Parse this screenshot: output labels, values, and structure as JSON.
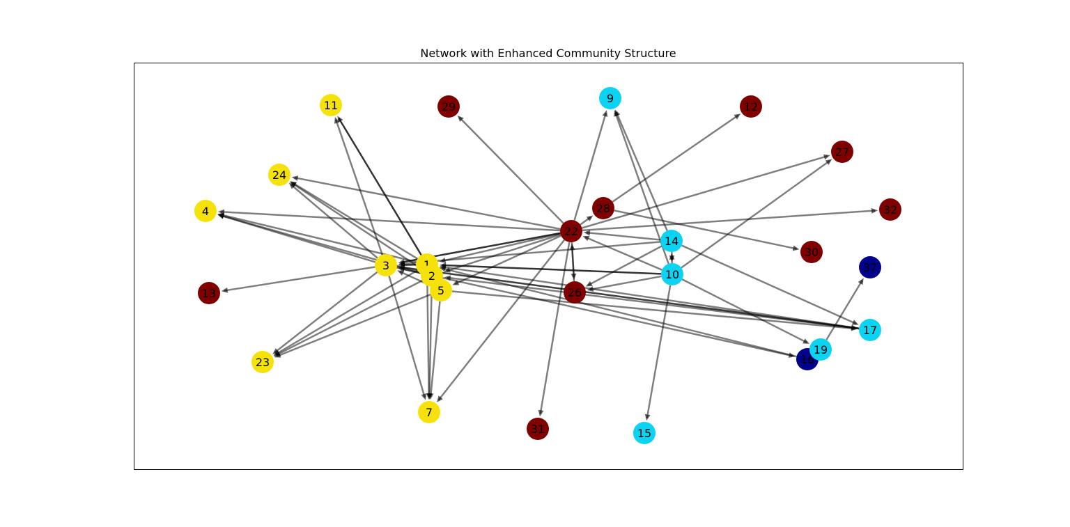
{
  "title": "Network with Enhanced Community Structure",
  "colors": {
    "community_yellow": "#f5e20a",
    "community_cyan": "#0dd3f3",
    "community_darkred": "#800000",
    "community_navy": "#00008a",
    "edge": "#000000",
    "frame": "#000000"
  },
  "nodes": [
    {
      "id": "1",
      "community": "community_yellow"
    },
    {
      "id": "2",
      "community": "community_yellow"
    },
    {
      "id": "3",
      "community": "community_yellow"
    },
    {
      "id": "4",
      "community": "community_yellow"
    },
    {
      "id": "5",
      "community": "community_yellow"
    },
    {
      "id": "7",
      "community": "community_yellow"
    },
    {
      "id": "9",
      "community": "community_cyan"
    },
    {
      "id": "10",
      "community": "community_cyan"
    },
    {
      "id": "11",
      "community": "community_yellow"
    },
    {
      "id": "12",
      "community": "community_darkred"
    },
    {
      "id": "13",
      "community": "community_darkred"
    },
    {
      "id": "14",
      "community": "community_cyan"
    },
    {
      "id": "15",
      "community": "community_cyan"
    },
    {
      "id": "16",
      "community": "community_navy"
    },
    {
      "id": "17",
      "community": "community_cyan"
    },
    {
      "id": "19",
      "community": "community_cyan"
    },
    {
      "id": "22",
      "community": "community_darkred"
    },
    {
      "id": "23",
      "community": "community_yellow"
    },
    {
      "id": "24",
      "community": "community_yellow"
    },
    {
      "id": "26",
      "community": "community_darkred"
    },
    {
      "id": "27",
      "community": "community_darkred"
    },
    {
      "id": "28",
      "community": "community_darkred"
    },
    {
      "id": "29",
      "community": "community_darkred"
    },
    {
      "id": "30",
      "community": "community_darkred"
    },
    {
      "id": "31",
      "community": "community_darkred"
    },
    {
      "id": "32",
      "community": "community_darkred"
    },
    {
      "id": "37",
      "community": "community_navy"
    }
  ],
  "edges": [
    [
      "1",
      "11"
    ],
    [
      "1",
      "24"
    ],
    [
      "1",
      "3"
    ],
    [
      "1",
      "7"
    ],
    [
      "1",
      "23"
    ],
    [
      "1",
      "4"
    ],
    [
      "2",
      "24"
    ],
    [
      "2",
      "3"
    ],
    [
      "2",
      "7"
    ],
    [
      "2",
      "23"
    ],
    [
      "2",
      "4"
    ],
    [
      "3",
      "11"
    ],
    [
      "3",
      "24"
    ],
    [
      "3",
      "4"
    ],
    [
      "3",
      "13"
    ],
    [
      "3",
      "23"
    ],
    [
      "3",
      "7"
    ],
    [
      "3",
      "17"
    ],
    [
      "3",
      "16"
    ],
    [
      "5",
      "7"
    ],
    [
      "5",
      "23"
    ],
    [
      "5",
      "3"
    ],
    [
      "5",
      "17"
    ],
    [
      "22",
      "29"
    ],
    [
      "22",
      "9"
    ],
    [
      "22",
      "27"
    ],
    [
      "22",
      "32"
    ],
    [
      "22",
      "24"
    ],
    [
      "22",
      "4"
    ],
    [
      "22",
      "28"
    ],
    [
      "22",
      "1"
    ],
    [
      "22",
      "3"
    ],
    [
      "22",
      "2"
    ],
    [
      "22",
      "5"
    ],
    [
      "22",
      "7"
    ],
    [
      "22",
      "31"
    ],
    [
      "22",
      "26"
    ],
    [
      "28",
      "12"
    ],
    [
      "28",
      "30"
    ],
    [
      "14",
      "9"
    ],
    [
      "14",
      "10"
    ],
    [
      "14",
      "26"
    ],
    [
      "14",
      "17"
    ],
    [
      "14",
      "3"
    ],
    [
      "14",
      "22"
    ],
    [
      "10",
      "9"
    ],
    [
      "10",
      "14"
    ],
    [
      "10",
      "27"
    ],
    [
      "10",
      "26"
    ],
    [
      "10",
      "1"
    ],
    [
      "10",
      "15"
    ],
    [
      "10",
      "19"
    ],
    [
      "10",
      "22"
    ],
    [
      "17",
      "1"
    ],
    [
      "17",
      "3"
    ],
    [
      "17",
      "2"
    ],
    [
      "19",
      "37"
    ],
    [
      "16",
      "1"
    ],
    [
      "26",
      "22"
    ]
  ],
  "dark_edges": [
    [
      "1",
      "11"
    ],
    [
      "10",
      "1"
    ],
    [
      "22",
      "3"
    ],
    [
      "1",
      "3"
    ]
  ]
}
